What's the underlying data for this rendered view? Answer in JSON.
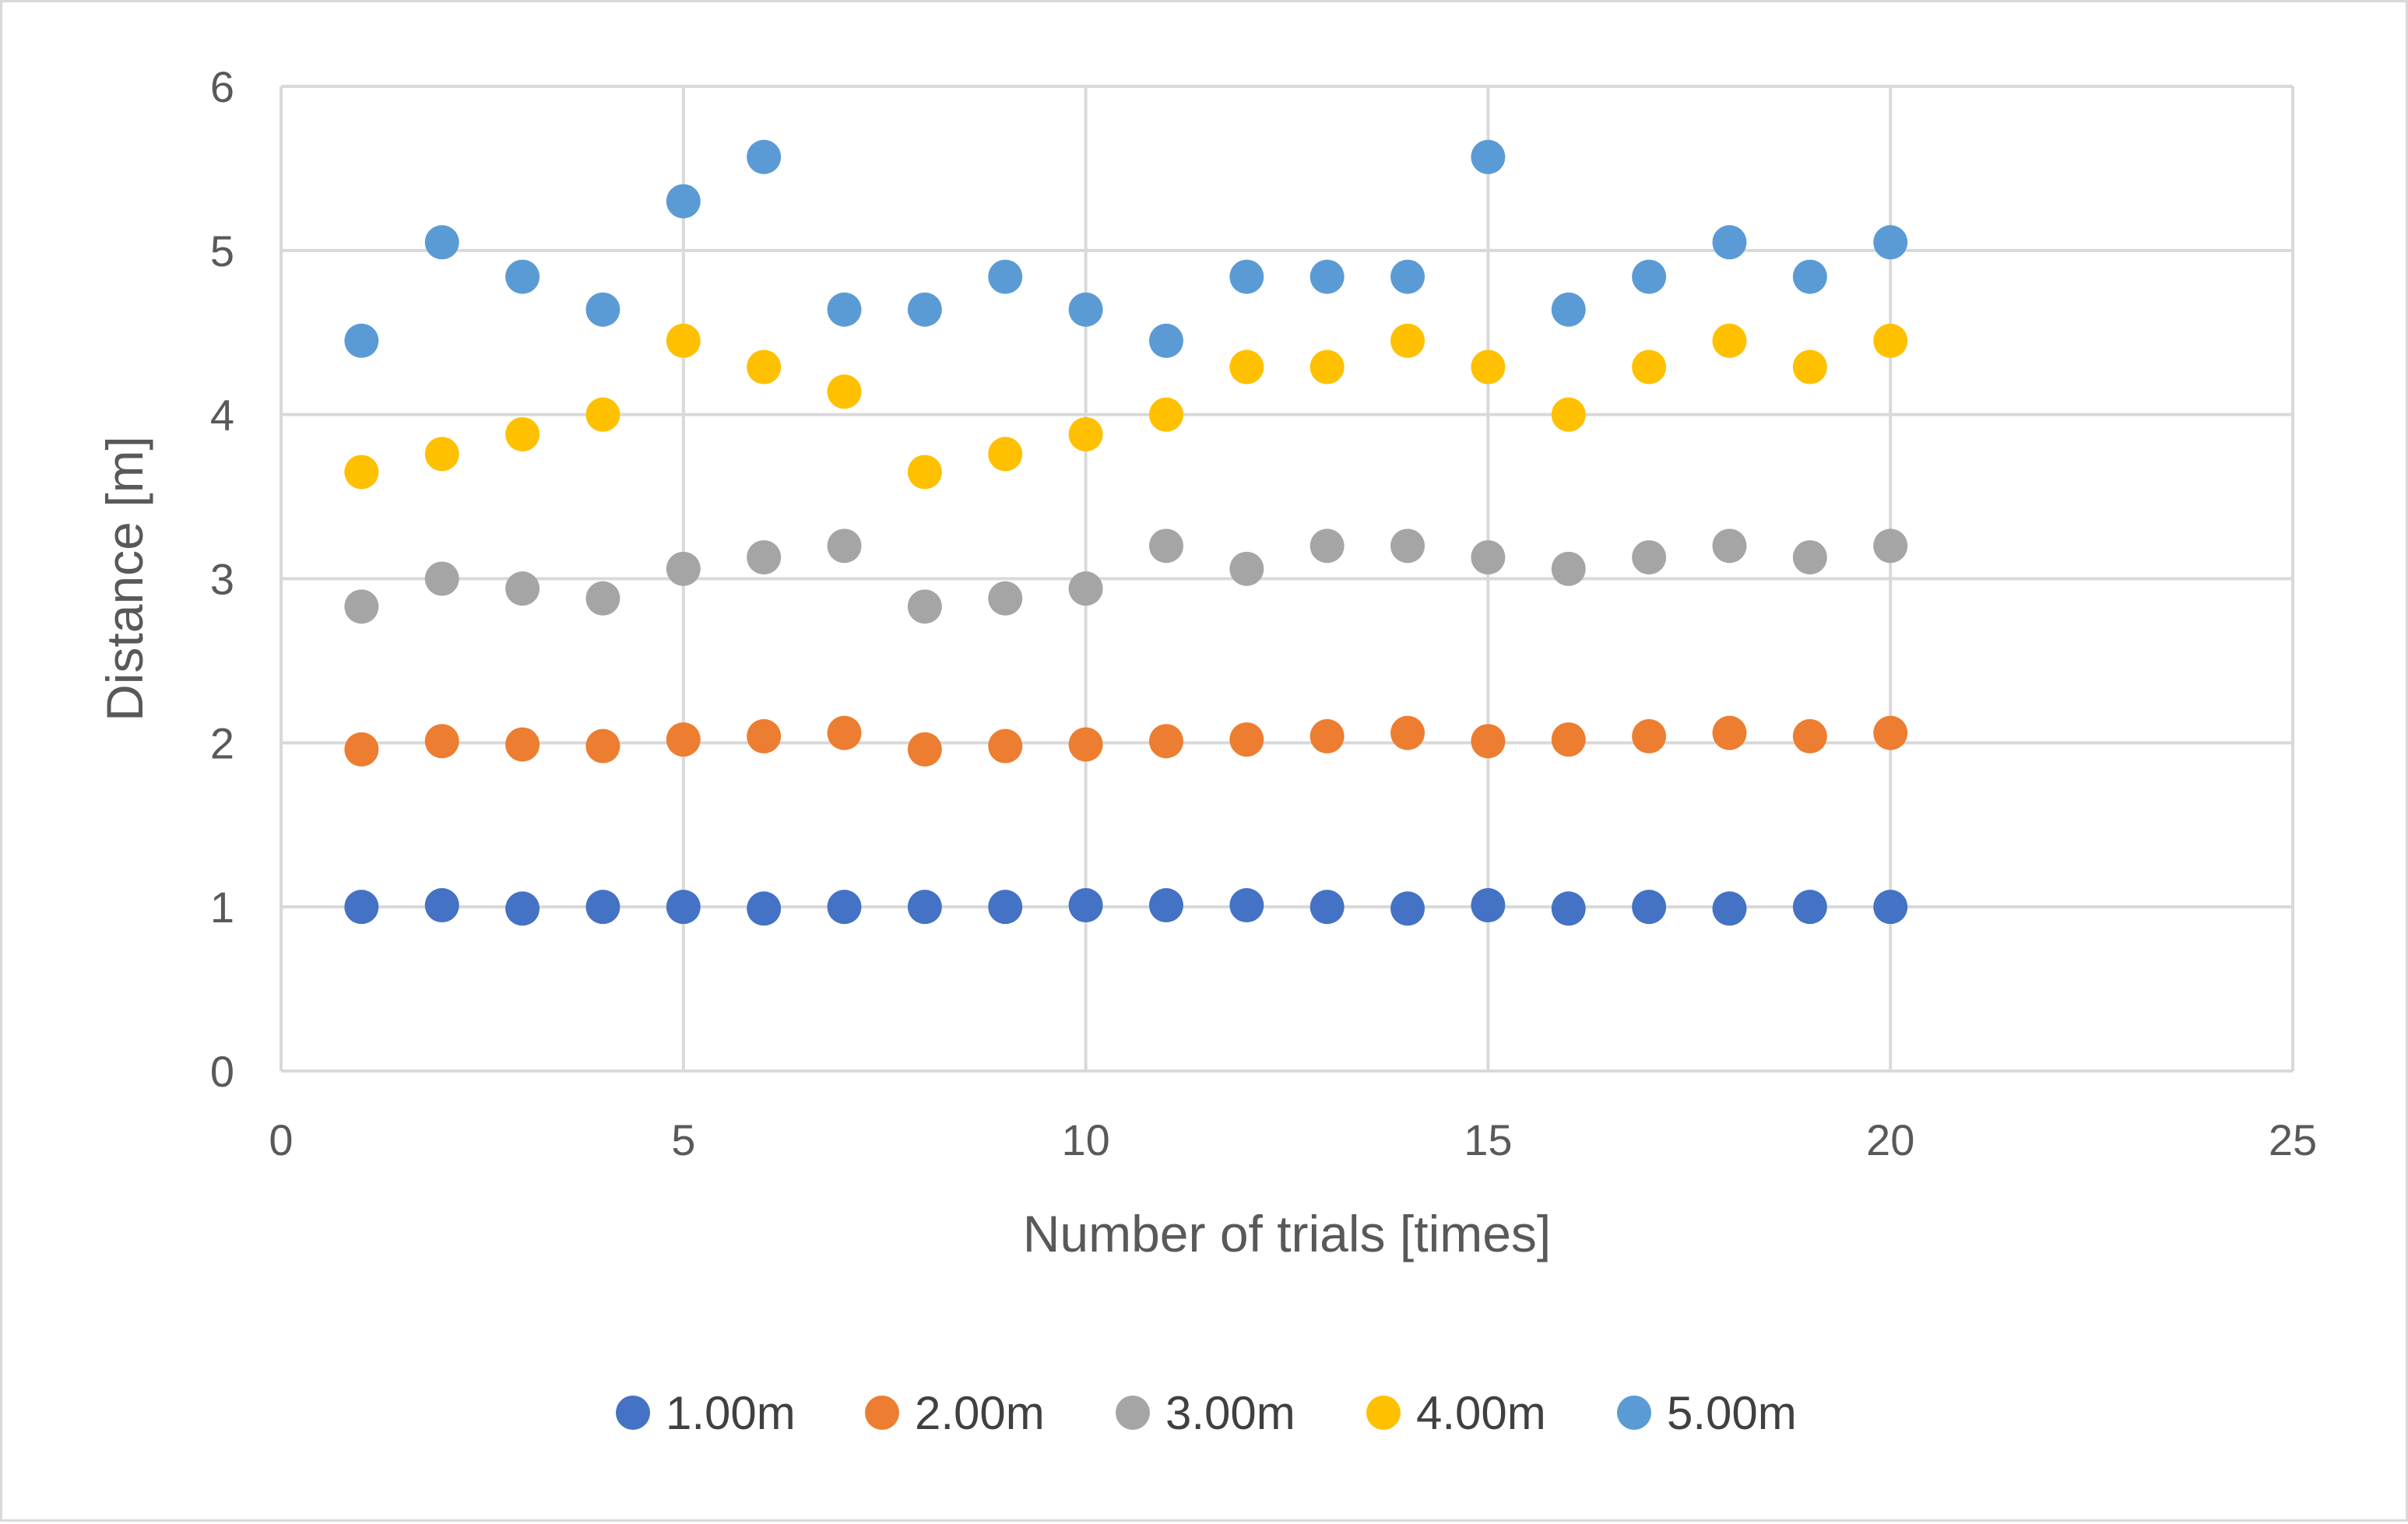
{
  "chart_data": {
    "type": "scatter",
    "title": "",
    "xlabel": "Number of trials [times]",
    "ylabel": "Distance [m]",
    "xlim": [
      0,
      25
    ],
    "ylim": [
      0,
      6
    ],
    "xticks": [
      0,
      5,
      10,
      15,
      20,
      25
    ],
    "yticks": [
      0,
      1,
      2,
      3,
      4,
      5,
      6
    ],
    "xtick_labels": [
      "0",
      "5",
      "10",
      "15",
      "20",
      "25"
    ],
    "ytick_labels": [
      "0",
      "1",
      "2",
      "3",
      "4",
      "5",
      "6"
    ],
    "grid": true,
    "legend_position": "bottom",
    "x": [
      1,
      2,
      3,
      4,
      5,
      6,
      7,
      8,
      9,
      10,
      11,
      12,
      13,
      14,
      15,
      16,
      17,
      18,
      19,
      20
    ],
    "series": [
      {
        "name": "1.00m",
        "color": "#4472c4",
        "values": [
          1.0,
          1.01,
          0.99,
          1.0,
          1.0,
          0.99,
          1.0,
          1.0,
          1.0,
          1.01,
          1.01,
          1.01,
          1.0,
          0.99,
          1.01,
          0.99,
          1.0,
          0.99,
          1.0,
          1.0
        ]
      },
      {
        "name": "2.00m",
        "color": "#ed7d31",
        "values": [
          1.96,
          2.01,
          1.99,
          1.98,
          2.02,
          2.04,
          2.06,
          1.96,
          1.98,
          1.99,
          2.01,
          2.02,
          2.04,
          2.06,
          2.01,
          2.02,
          2.04,
          2.06,
          2.04,
          2.06
        ]
      },
      {
        "name": "3.00m",
        "color": "#a5a5a5",
        "values": [
          2.83,
          3.0,
          2.94,
          2.88,
          3.06,
          3.13,
          3.2,
          2.83,
          2.88,
          2.94,
          3.2,
          3.06,
          3.2,
          3.2,
          3.13,
          3.06,
          3.13,
          3.2,
          3.13,
          3.2
        ]
      },
      {
        "name": "4.00m",
        "color": "#ffc000",
        "values": [
          3.65,
          3.76,
          3.88,
          4.0,
          4.45,
          4.29,
          4.14,
          3.65,
          3.76,
          3.88,
          4.0,
          4.29,
          4.29,
          4.45,
          4.29,
          4.0,
          4.29,
          4.45,
          4.29,
          4.45
        ]
      },
      {
        "name": "5.00m",
        "color": "#5b9bd5",
        "values": [
          4.45,
          5.05,
          4.84,
          4.64,
          5.3,
          5.57,
          4.64,
          4.64,
          4.84,
          4.64,
          4.45,
          4.84,
          4.84,
          4.84,
          5.57,
          4.64,
          4.84,
          5.05,
          4.84,
          5.05
        ]
      }
    ]
  }
}
